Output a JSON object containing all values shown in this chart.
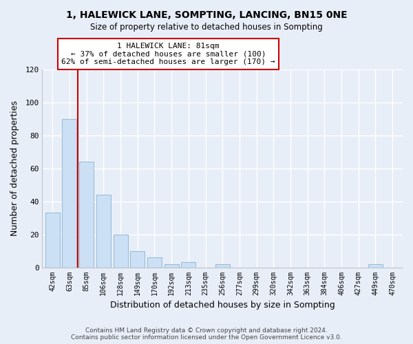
{
  "title": "1, HALEWICK LANE, SOMPTING, LANCING, BN15 0NE",
  "subtitle": "Size of property relative to detached houses in Sompting",
  "xlabel": "Distribution of detached houses by size in Sompting",
  "ylabel": "Number of detached properties",
  "bar_labels": [
    "42sqm",
    "63sqm",
    "85sqm",
    "106sqm",
    "128sqm",
    "149sqm",
    "170sqm",
    "192sqm",
    "213sqm",
    "235sqm",
    "256sqm",
    "277sqm",
    "299sqm",
    "320sqm",
    "342sqm",
    "363sqm",
    "384sqm",
    "406sqm",
    "427sqm",
    "449sqm",
    "470sqm"
  ],
  "bar_values": [
    33,
    90,
    64,
    44,
    20,
    10,
    6,
    2,
    3,
    0,
    2,
    0,
    0,
    0,
    0,
    0,
    0,
    0,
    0,
    2,
    0
  ],
  "bar_color": "#cce0f5",
  "bar_edge_color": "#9bbdd6",
  "vline_x": 1.5,
  "vline_color": "#cc0000",
  "annotation_text": "1 HALEWICK LANE: 81sqm\n← 37% of detached houses are smaller (100)\n62% of semi-detached houses are larger (170) →",
  "annotation_box_color": "#ffffff",
  "annotation_box_edgecolor": "#cc0000",
  "ylim": [
    0,
    120
  ],
  "yticks": [
    0,
    20,
    40,
    60,
    80,
    100,
    120
  ],
  "footer": "Contains HM Land Registry data © Crown copyright and database right 2024.\nContains public sector information licensed under the Open Government Licence v3.0.",
  "background_color": "#e8eef8",
  "plot_bg_color": "#e8eef8",
  "grid_color": "#ffffff"
}
